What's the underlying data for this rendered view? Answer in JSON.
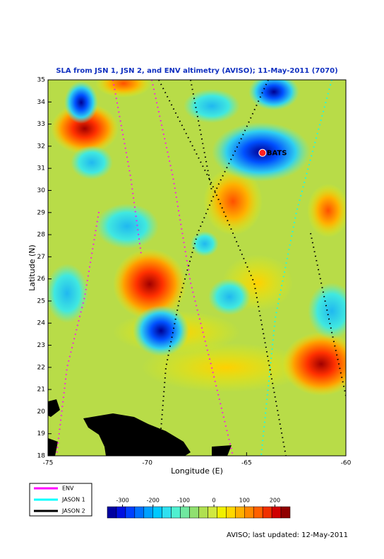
{
  "chart_data": {
    "type": "map",
    "title": "SLA from JSN 1, JSN 2, and ENV altimetry (AVISO); 11-May-2011 (7070)",
    "xlabel": "Longitude (E)",
    "ylabel": "Latitude (N)",
    "xlim": [
      -75,
      -60
    ],
    "ylim": [
      18,
      35
    ],
    "xticks": [
      -75,
      -70,
      -65,
      -60
    ],
    "yticks": [
      18,
      19,
      20,
      21,
      22,
      23,
      24,
      25,
      26,
      27,
      28,
      29,
      30,
      31,
      32,
      33,
      34,
      35
    ],
    "stations": [
      {
        "name": "BATS",
        "lon": -64.2,
        "lat": 31.7,
        "color": "#ff2020"
      }
    ],
    "legend": [
      {
        "name": "ENV",
        "color": "#ff00ff"
      },
      {
        "name": "JASON 1",
        "color": "#00ffff"
      },
      {
        "name": "JASON 2",
        "color": "#000000"
      }
    ],
    "colorbar": {
      "lim": [
        -350,
        250
      ],
      "ticks": [
        -300,
        -200,
        -100,
        0,
        100,
        200
      ],
      "colors": [
        "#0000a0",
        "#0010e0",
        "#0040ff",
        "#0070ff",
        "#00a0ff",
        "#00c8ff",
        "#30e0f0",
        "#50f0d0",
        "#70e8a0",
        "#90e070",
        "#b0e050",
        "#d0e840",
        "#f0f000",
        "#ffd800",
        "#ffb000",
        "#ff8800",
        "#ff6000",
        "#f03000",
        "#d00000",
        "#900000"
      ]
    }
  },
  "footer": "AVISO; last updated: 12-May-2011"
}
